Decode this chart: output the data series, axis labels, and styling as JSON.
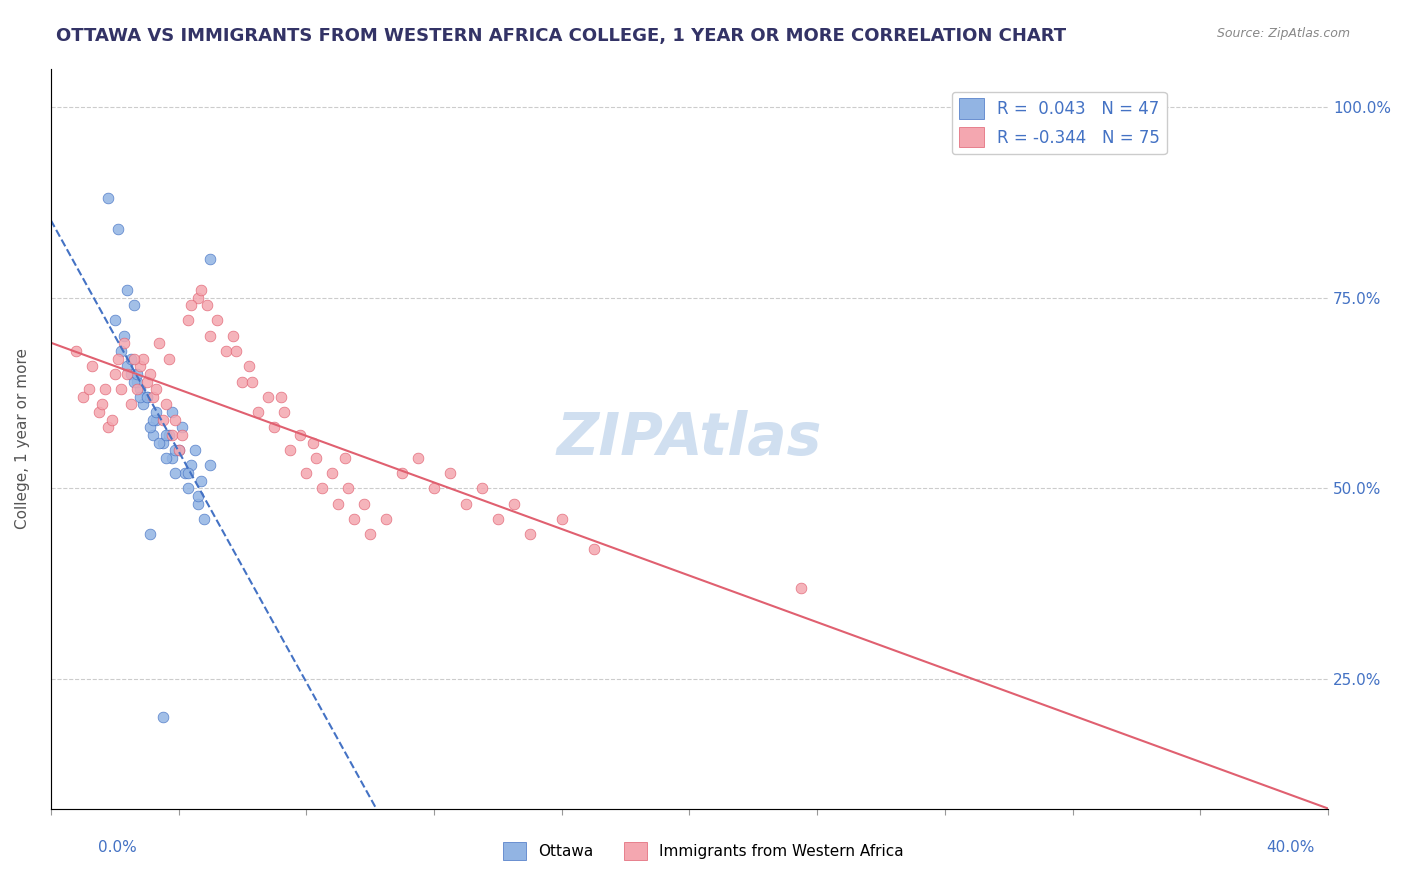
{
  "title": "OTTAWA VS IMMIGRANTS FROM WESTERN AFRICA COLLEGE, 1 YEAR OR MORE CORRELATION CHART",
  "source": "Source: ZipAtlas.com",
  "ylabel": "College, 1 year or more",
  "ylabel_ticks": [
    "25.0%",
    "50.0%",
    "75.0%",
    "100.0%"
  ],
  "ylabel_tick_vals": [
    0.25,
    0.5,
    0.75,
    1.0
  ],
  "xmin": 0.0,
  "xmax": 0.4,
  "ymin": 0.08,
  "ymax": 1.05,
  "blue_r": 0.043,
  "blue_n": 47,
  "pink_r": -0.344,
  "pink_n": 75,
  "blue_color": "#92b4e3",
  "pink_color": "#f4a7b0",
  "blue_line_color": "#4472c4",
  "pink_line_color": "#e06070",
  "legend_text_color": "#4472c4",
  "title_color": "#333366",
  "watermark_color": "#d0dff0",
  "blue_scatter_x": [
    0.032,
    0.038,
    0.041,
    0.045,
    0.05,
    0.028,
    0.03,
    0.033,
    0.035,
    0.038,
    0.042,
    0.025,
    0.027,
    0.029,
    0.031,
    0.034,
    0.036,
    0.039,
    0.043,
    0.046,
    0.048,
    0.022,
    0.024,
    0.026,
    0.028,
    0.032,
    0.037,
    0.04,
    0.044,
    0.047,
    0.02,
    0.023,
    0.025,
    0.027,
    0.03,
    0.033,
    0.036,
    0.039,
    0.043,
    0.046,
    0.05,
    0.018,
    0.021,
    0.024,
    0.026,
    0.031,
    0.035
  ],
  "blue_scatter_y": [
    0.57,
    0.6,
    0.58,
    0.55,
    0.53,
    0.63,
    0.62,
    0.59,
    0.56,
    0.54,
    0.52,
    0.65,
    0.64,
    0.61,
    0.58,
    0.56,
    0.54,
    0.52,
    0.5,
    0.48,
    0.46,
    0.68,
    0.66,
    0.64,
    0.62,
    0.59,
    0.57,
    0.55,
    0.53,
    0.51,
    0.72,
    0.7,
    0.67,
    0.65,
    0.62,
    0.6,
    0.57,
    0.55,
    0.52,
    0.49,
    0.8,
    0.88,
    0.84,
    0.76,
    0.74,
    0.44,
    0.2
  ],
  "pink_scatter_x": [
    0.01,
    0.015,
    0.018,
    0.02,
    0.022,
    0.025,
    0.028,
    0.03,
    0.032,
    0.035,
    0.038,
    0.04,
    0.043,
    0.046,
    0.05,
    0.055,
    0.06,
    0.065,
    0.07,
    0.075,
    0.08,
    0.085,
    0.09,
    0.095,
    0.1,
    0.11,
    0.12,
    0.13,
    0.14,
    0.15,
    0.012,
    0.016,
    0.019,
    0.021,
    0.024,
    0.027,
    0.029,
    0.031,
    0.033,
    0.036,
    0.039,
    0.041,
    0.044,
    0.047,
    0.052,
    0.057,
    0.062,
    0.068,
    0.073,
    0.078,
    0.083,
    0.088,
    0.093,
    0.098,
    0.105,
    0.115,
    0.125,
    0.135,
    0.145,
    0.16,
    0.17,
    0.008,
    0.013,
    0.017,
    0.023,
    0.026,
    0.034,
    0.037,
    0.049,
    0.058,
    0.063,
    0.072,
    0.082,
    0.092,
    0.235
  ],
  "pink_scatter_y": [
    0.62,
    0.6,
    0.58,
    0.65,
    0.63,
    0.61,
    0.66,
    0.64,
    0.62,
    0.59,
    0.57,
    0.55,
    0.72,
    0.75,
    0.7,
    0.68,
    0.64,
    0.6,
    0.58,
    0.55,
    0.52,
    0.5,
    0.48,
    0.46,
    0.44,
    0.52,
    0.5,
    0.48,
    0.46,
    0.44,
    0.63,
    0.61,
    0.59,
    0.67,
    0.65,
    0.63,
    0.67,
    0.65,
    0.63,
    0.61,
    0.59,
    0.57,
    0.74,
    0.76,
    0.72,
    0.7,
    0.66,
    0.62,
    0.6,
    0.57,
    0.54,
    0.52,
    0.5,
    0.48,
    0.46,
    0.54,
    0.52,
    0.5,
    0.48,
    0.46,
    0.42,
    0.68,
    0.66,
    0.63,
    0.69,
    0.67,
    0.69,
    0.67,
    0.74,
    0.68,
    0.64,
    0.62,
    0.56,
    0.54,
    0.37
  ]
}
